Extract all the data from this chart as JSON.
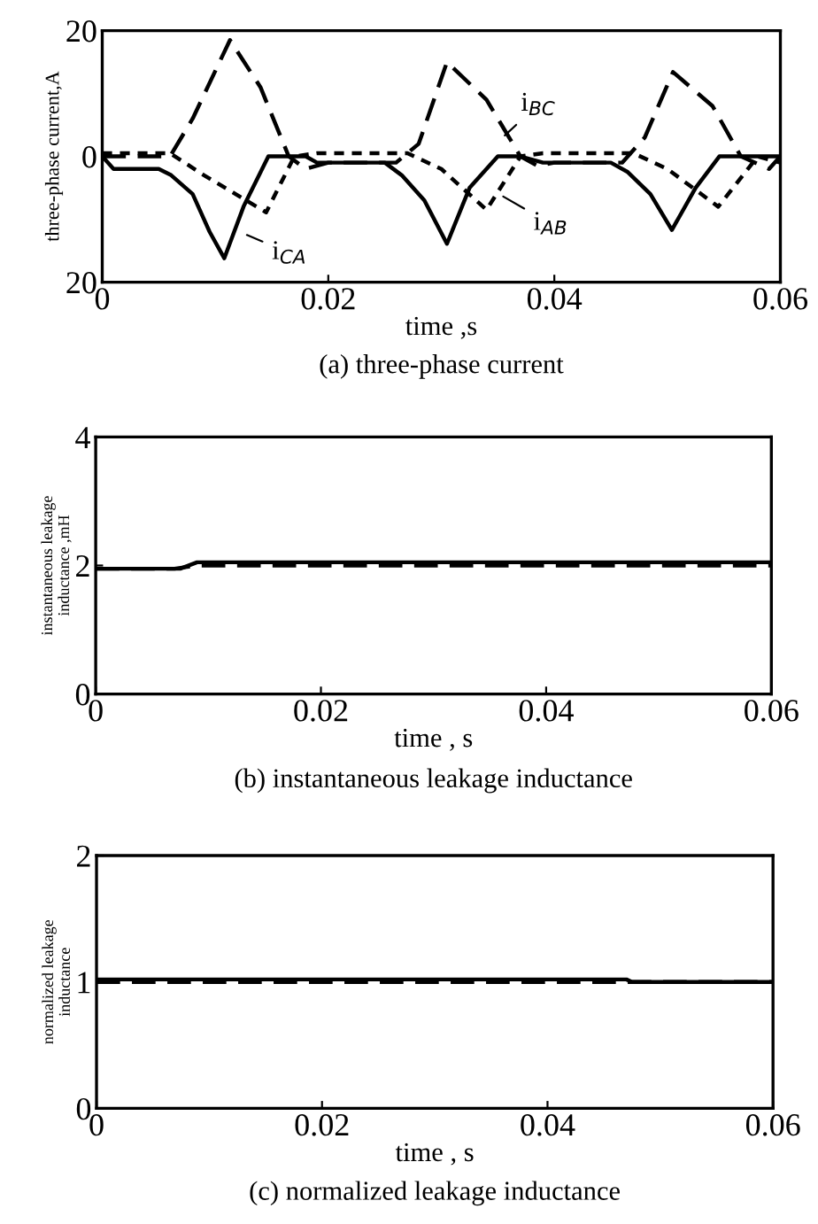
{
  "chart_data": [
    {
      "type": "line",
      "title": "(a) three-phase current",
      "xlabel": "time ,s",
      "ylabel": "three-phase current,A",
      "xlim": [
        0,
        0.06
      ],
      "xticks": [
        0,
        0.02,
        0.04,
        0.06
      ],
      "ylim": [
        -20,
        20
      ],
      "yticks": [
        {
          "value": -20,
          "label": "20"
        },
        0,
        20
      ],
      "grid": false,
      "legend": false,
      "series": [
        {
          "color": "#000000",
          "line_style": "solid",
          "x": [
            0,
            0.001,
            0.005,
            0.0061,
            0.008,
            0.0095,
            0.0108,
            0.0125,
            0.0147,
            0.018,
            0.019,
            0.025,
            0.0265,
            0.0285,
            0.0305,
            0.0325,
            0.035,
            0.037,
            0.039,
            0.045,
            0.0465,
            0.0485,
            0.0504,
            0.0525,
            0.0546,
            0.06
          ],
          "values": [
            0,
            -2,
            -2,
            -3,
            -6,
            -12,
            -16.2,
            -8,
            0,
            0,
            -1,
            -1,
            -3,
            -7,
            -13.9,
            -5,
            0,
            0,
            -1,
            -1,
            -2.5,
            -6,
            -11.7,
            -5,
            0,
            0
          ]
        },
        {
          "color": "#000000",
          "line_style": "dashed",
          "x": [
            0,
            0.006,
            0.008,
            0.0113,
            0.014,
            0.0165,
            0.018,
            0.02,
            0.026,
            0.028,
            0.0305,
            0.034,
            0.037,
            0.0385,
            0.04,
            0.046,
            0.048,
            0.0505,
            0.054,
            0.0565,
            0.059,
            0.06
          ],
          "values": [
            0,
            0,
            6,
            18.5,
            11,
            0,
            -2,
            -1,
            -1,
            2,
            15,
            9,
            0,
            -1.5,
            -1,
            -1,
            3,
            13.4,
            8,
            0,
            -2,
            0
          ]
        },
        {
          "color": "#000000",
          "line_style": "dotted",
          "x": [
            0,
            0.006,
            0.009,
            0.0145,
            0.017,
            0.019,
            0.027,
            0.03,
            0.034,
            0.037,
            0.039,
            0.047,
            0.05,
            0.0545,
            0.058,
            0.06
          ],
          "values": [
            0.5,
            0.5,
            -3,
            -8.9,
            0,
            0.5,
            0.5,
            -2,
            -8.5,
            0,
            0.5,
            0.5,
            -2,
            -8,
            0,
            -1
          ]
        }
      ],
      "annotations": [
        {
          "text": "i$_{CA}$",
          "x": 0.0124,
          "y": -12.2
        },
        {
          "text": "i$_{BC}$",
          "x": 0.0353,
          "y": 2.8
        },
        {
          "text": "i$_{AB}$",
          "x": 0.0351,
          "y": -6
        }
      ]
    },
    {
      "type": "line",
      "title": "(b) instantaneous leakage inductance",
      "xlabel": "time , s",
      "ylabel": "instantaneous leakage\ninductance ,mH",
      "xlim": [
        0,
        0.06
      ],
      "xticks": [
        0,
        0.02,
        0.04,
        0.06
      ],
      "ylim": [
        0,
        4
      ],
      "yticks": [
        0,
        2,
        4
      ],
      "grid": false,
      "legend": false,
      "series": [
        {
          "color": "#000000",
          "line_style": "solid",
          "x": [
            0,
            0.0075,
            0.009,
            0.06
          ],
          "values": [
            1.95,
            1.95,
            2.05,
            2.05
          ]
        },
        {
          "color": "#000000",
          "line_style": "dashed",
          "x": [
            0,
            0.007,
            0.009,
            0.06
          ],
          "values": [
            1.95,
            1.95,
            2.0,
            2.0
          ]
        }
      ]
    },
    {
      "type": "line",
      "title": "(c) normalized leakage inductance",
      "xlabel": "time , s",
      "ylabel": "normalized leakage\ninductance",
      "xlim": [
        0,
        0.06
      ],
      "xticks": [
        0,
        0.02,
        0.04,
        0.06
      ],
      "ylim": [
        0,
        2
      ],
      "yticks": [
        0,
        1,
        2
      ],
      "grid": false,
      "legend": false,
      "series": [
        {
          "color": "#000000",
          "line_style": "solid",
          "x": [
            0,
            0.047,
            0.0475,
            0.06
          ],
          "values": [
            1.02,
            1.02,
            1.0,
            1.0
          ]
        },
        {
          "color": "#000000",
          "line_style": "dashed",
          "x": [
            0,
            0.06
          ],
          "values": [
            1.0,
            1.0
          ]
        }
      ]
    }
  ]
}
